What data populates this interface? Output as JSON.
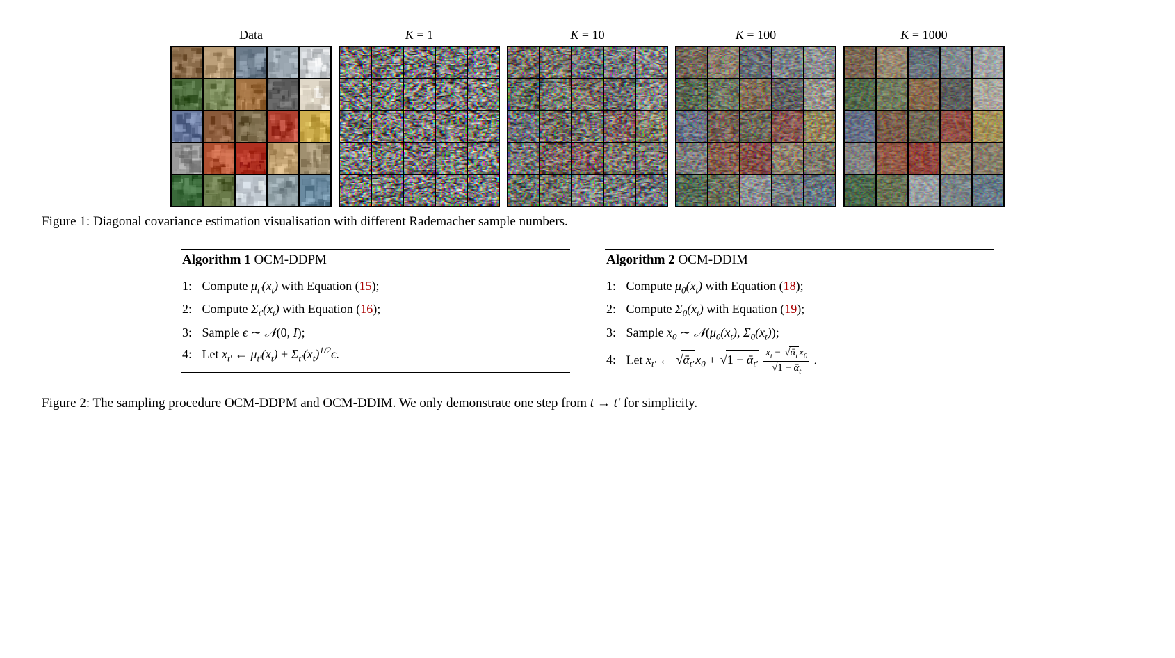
{
  "figure1": {
    "panels": [
      {
        "label": "Data",
        "thumbs": [
          "#8a6b4a",
          "#bca07a",
          "#6a7a8a",
          "#9aa6b0",
          "#cfd3d6",
          "#4a6a3a",
          "#7a8a5a",
          "#a07040",
          "#5a5a5a",
          "#e0d8c8",
          "#6a7aa0",
          "#8a5a3a",
          "#7a6a4a",
          "#b04030",
          "#d0b050",
          "#9a9a9a",
          "#b05030",
          "#b03020",
          "#c0a070",
          "#a09070",
          "#3a6a3a",
          "#6a7a4a",
          "#c0c8d0",
          "#8a9aa0",
          "#6a8aa0"
        ]
      },
      {
        "label": "K = 1",
        "base": "#2a2a2a",
        "noise": 0.9
      },
      {
        "label": "K = 10",
        "base": "#2b2b2b",
        "noise": 0.7
      },
      {
        "label": "K = 100",
        "base": "#2c2c2c",
        "noise": 0.45
      },
      {
        "label": "K = 1000",
        "base": "#2d2d2d",
        "noise": 0.3
      }
    ],
    "caption": "Figure 1: Diagonal covariance estimation visualisation with different Rademacher sample numbers."
  },
  "algorithms": {
    "left": {
      "title_bold": "Algorithm 1",
      "title_rest": " OCM-DDPM",
      "lines": [
        {
          "n": "1:",
          "html": "Compute <span class='math'>μ<sub>t′</sub>(x<sub>t</sub>)</span> with Equation (<span class='eqref'>15</span>);"
        },
        {
          "n": "2:",
          "html": "Compute <span class='math'>Σ<sub>t′</sub>(x<sub>t</sub>)</span> with Equation (<span class='eqref'>16</span>);"
        },
        {
          "n": "3:",
          "html": "Sample <span class='math'>ϵ</span> ∼ <span class='math'>𝒩</span>(0, <span class='math'>I</span>);"
        },
        {
          "n": "4:",
          "html": "Let <span class='math'>x<sub>t′</sub></span> ← <span class='math'>μ<sub>t′</sub>(x<sub>t</sub>)</span> + <span class='math'>Σ<sub>t′</sub>(x<sub>t</sub>)<sup>1/2</sup>ϵ</span>."
        }
      ]
    },
    "right": {
      "title_bold": "Algorithm 2",
      "title_rest": " OCM-DDIM",
      "lines": [
        {
          "n": "1:",
          "html": "Compute <span class='math'>μ<sub>0</sub>(x<sub>t</sub>)</span> with Equation (<span class='eqref'>18</span>);"
        },
        {
          "n": "2:",
          "html": "Compute <span class='math'>Σ<sub>0</sub>(x<sub>t</sub>)</span> with Equation (<span class='eqref'>19</span>);"
        },
        {
          "n": "3:",
          "html": "Sample <span class='math'>x<sub>0</sub></span> ∼ <span class='math'>𝒩</span>(<span class='math'>μ<sub>0</sub>(x<sub>t</sub>)</span>, <span class='math'>Σ<sub>0</sub>(x<sub>t</sub>)</span>);"
        },
        {
          "n": "4:",
          "html": "Let <span class='math'>x<sub>t′</sub></span> ← <span class='sqrt'><span class='rad'><span class='math'>ᾱ<sub>t′</sub></span></span></span><span class='math'>x<sub>0</sub></span> + <span class='sqrt'><span class='rad'>1 − <span class='math'>ᾱ<sub>t′</sub></span></span></span> <span class='frac'><span class='nume'><span class='math'>x<sub>t</sub></span> − <span class='sqrt'><span class='rad'><span class='math'>ᾱ<sub>t</sub></span></span></span><span class='math'>x<sub>0</sub></span></span><span class='deno'><span class='sqrt'><span class='rad'>1 − <span class='math'>ᾱ<sub>t</sub></span></span></span></span></span> ."
        }
      ]
    }
  },
  "figure2_caption": "Figure 2: The sampling procedure OCM-DDPM and OCM-DDIM. We only demonstrate one step from t → t′ for simplicity."
}
